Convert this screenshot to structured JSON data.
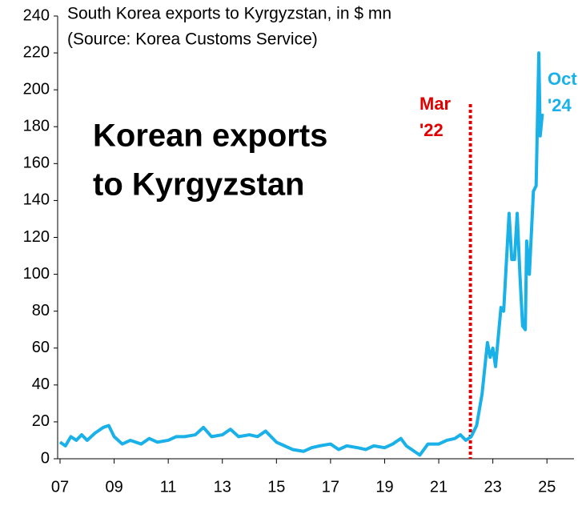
{
  "chart_data": {
    "type": "line",
    "title": "South Korea exports to Kyrgyzstan, in $ mn",
    "subtitle": "(Source: Korea Customs Service)",
    "annotation": [
      "Korean exports",
      "to Kyrgyzstan"
    ],
    "event_line": {
      "x": 2022.17,
      "label": [
        "Mar",
        "'22"
      ],
      "color": "#e00000"
    },
    "end_label": [
      "Oct",
      "'24"
    ],
    "xlim": [
      2007,
      2026
    ],
    "xticks": [
      {
        "value": 2007,
        "label": "07"
      },
      {
        "value": 2009,
        "label": "09"
      },
      {
        "value": 2011,
        "label": "11"
      },
      {
        "value": 2013,
        "label": "13"
      },
      {
        "value": 2015,
        "label": "15"
      },
      {
        "value": 2017,
        "label": "17"
      },
      {
        "value": 2019,
        "label": "19"
      },
      {
        "value": 2021,
        "label": "21"
      },
      {
        "value": 2023,
        "label": "23"
      },
      {
        "value": 2025,
        "label": "25"
      }
    ],
    "ylim": [
      0,
      240
    ],
    "yticks": [
      0,
      20,
      40,
      60,
      80,
      100,
      120,
      140,
      160,
      180,
      200,
      220,
      240
    ],
    "x": [
      2007.0,
      2007.2,
      2007.4,
      2007.6,
      2007.8,
      2008.0,
      2008.3,
      2008.6,
      2008.8,
      2009.0,
      2009.3,
      2009.6,
      2010.0,
      2010.3,
      2010.6,
      2011.0,
      2011.3,
      2011.6,
      2012.0,
      2012.3,
      2012.6,
      2013.0,
      2013.3,
      2013.6,
      2014.0,
      2014.3,
      2014.6,
      2015.0,
      2015.3,
      2015.6,
      2016.0,
      2016.3,
      2016.6,
      2017.0,
      2017.3,
      2017.6,
      2018.0,
      2018.3,
      2018.6,
      2019.0,
      2019.3,
      2019.6,
      2019.8,
      2020.0,
      2020.3,
      2020.6,
      2021.0,
      2021.3,
      2021.6,
      2021.8,
      2022.0,
      2022.2,
      2022.4,
      2022.6,
      2022.8,
      2022.9,
      2023.0,
      2023.1,
      2023.3,
      2023.4,
      2023.6,
      2023.7,
      2023.8,
      2023.9,
      2024.0,
      2024.1,
      2024.2,
      2024.25,
      2024.35,
      2024.5,
      2024.6,
      2024.7,
      2024.75,
      2024.83
    ],
    "series": [
      {
        "name": "South Korea exports to Kyrgyzstan",
        "color": "#1ab0e8",
        "values": [
          9,
          7,
          12,
          10,
          13,
          10,
          14,
          17,
          18,
          12,
          8,
          10,
          8,
          11,
          9,
          10,
          12,
          12,
          13,
          17,
          12,
          13,
          16,
          12,
          13,
          12,
          15,
          9,
          7,
          5,
          4,
          6,
          7,
          8,
          5,
          7,
          6,
          5,
          7,
          6,
          8,
          11,
          7,
          5,
          2,
          8,
          8,
          10,
          11,
          13,
          10,
          12,
          18,
          35,
          63,
          55,
          60,
          50,
          82,
          80,
          133,
          108,
          108,
          133,
          100,
          72,
          70,
          118,
          100,
          145,
          148,
          220,
          175,
          187
        ]
      }
    ]
  }
}
